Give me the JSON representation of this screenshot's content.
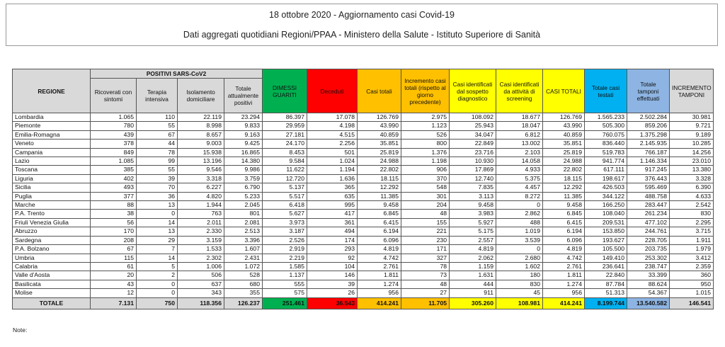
{
  "header": {
    "title": "18 ottobre 2020 - Aggiornamento casi Covid-19",
    "subtitle": "Dati aggregati quotidiani Regioni/PPAA - Ministero della Salute - Istituto Superiore di Sanità"
  },
  "table": {
    "region_header": "REGIONE",
    "group_header": "POSITIVI SARS-CoV2",
    "columns": [
      "Ricoverati con sintomi",
      "Terapia intensiva",
      "Isolamento domiciliare",
      "Totale attualmente positivi",
      "DIMESSI GUARITI",
      "Deceduti",
      "Casi totali",
      "Incremento casi totali (rispetto al giorno precedente)",
      "Casi identificati dal sospetto diagnostico",
      "Casi identificati da attività di screening",
      "CASI TOTALI",
      "Totale casi testati",
      "Totale tamponi effettuati",
      "INCREMENTO TAMPONI"
    ],
    "rows": [
      [
        "Lombardia",
        "1.065",
        "110",
        "22.119",
        "23.294",
        "86.397",
        "17.078",
        "126.769",
        "2.975",
        "108.092",
        "18.677",
        "126.769",
        "1.565.233",
        "2.502.284",
        "30.981"
      ],
      [
        "Piemonte",
        "780",
        "55",
        "8.998",
        "9.833",
        "29.959",
        "4.198",
        "43.990",
        "1.123",
        "25.943",
        "18.047",
        "43.990",
        "505.300",
        "859.206",
        "9.721"
      ],
      [
        "Emilia-Romagna",
        "439",
        "67",
        "8.657",
        "9.163",
        "27.181",
        "4.515",
        "40.859",
        "526",
        "34.047",
        "6.812",
        "40.859",
        "760.075",
        "1.375.298",
        "9.189"
      ],
      [
        "Veneto",
        "378",
        "44",
        "9.003",
        "9.425",
        "24.170",
        "2.256",
        "35.851",
        "800",
        "22.849",
        "13.002",
        "35.851",
        "836.440",
        "2.145.935",
        "10.285"
      ],
      [
        "Campania",
        "849",
        "78",
        "15.938",
        "16.865",
        "8.453",
        "501",
        "25.819",
        "1.376",
        "23.716",
        "2.103",
        "25.819",
        "519.783",
        "766.187",
        "14.256"
      ],
      [
        "Lazio",
        "1.085",
        "99",
        "13.196",
        "14.380",
        "9.584",
        "1.024",
        "24.988",
        "1.198",
        "10.930",
        "14.058",
        "24.988",
        "941.774",
        "1.146.334",
        "23.010"
      ],
      [
        "Toscana",
        "385",
        "55",
        "9.546",
        "9.986",
        "11.622",
        "1.194",
        "22.802",
        "906",
        "17.869",
        "4.933",
        "22.802",
        "617.111",
        "917.245",
        "13.380"
      ],
      [
        "Liguria",
        "402",
        "39",
        "3.318",
        "3.759",
        "12.720",
        "1.636",
        "18.115",
        "370",
        "12.740",
        "5.375",
        "18.115",
        "198.617",
        "376.443",
        "3.328"
      ],
      [
        "Sicilia",
        "493",
        "70",
        "6.227",
        "6.790",
        "5.137",
        "365",
        "12.292",
        "548",
        "7.835",
        "4.457",
        "12.292",
        "426.503",
        "595.469",
        "6.390"
      ],
      [
        "Puglia",
        "377",
        "36",
        "4.820",
        "5.233",
        "5.517",
        "635",
        "11.385",
        "301",
        "3.113",
        "8.272",
        "11.385",
        "344.122",
        "488.758",
        "4.633"
      ],
      [
        "Marche",
        "88",
        "13",
        "1.944",
        "2.045",
        "6.418",
        "995",
        "9.458",
        "204",
        "9.458",
        "0",
        "9.458",
        "166.250",
        "283.447",
        "2.542"
      ],
      [
        "P.A. Trento",
        "38",
        "0",
        "763",
        "801",
        "5.627",
        "417",
        "6.845",
        "48",
        "3.983",
        "2.862",
        "6.845",
        "108.040",
        "261.234",
        "830"
      ],
      [
        "Friuli Venezia Giulia",
        "56",
        "14",
        "2.011",
        "2.081",
        "3.973",
        "361",
        "6.415",
        "155",
        "5.927",
        "488",
        "6.415",
        "209.531",
        "477.102",
        "2.295"
      ],
      [
        "Abruzzo",
        "170",
        "13",
        "2.330",
        "2.513",
        "3.187",
        "494",
        "6.194",
        "221",
        "5.175",
        "1.019",
        "6.194",
        "153.850",
        "244.761",
        "3.715"
      ],
      [
        "Sardegna",
        "208",
        "29",
        "3.159",
        "3.396",
        "2.526",
        "174",
        "6.096",
        "230",
        "2.557",
        "3.539",
        "6.096",
        "193.627",
        "228.705",
        "1.911"
      ],
      [
        "P.A. Bolzano",
        "67",
        "7",
        "1.533",
        "1.607",
        "2.919",
        "293",
        "4.819",
        "171",
        "4.819",
        "0",
        "4.819",
        "105.500",
        "203.735",
        "1.979"
      ],
      [
        "Umbria",
        "115",
        "14",
        "2.302",
        "2.431",
        "2.219",
        "92",
        "4.742",
        "327",
        "2.062",
        "2.680",
        "4.742",
        "149.410",
        "253.302",
        "3.412"
      ],
      [
        "Calabria",
        "61",
        "5",
        "1.006",
        "1.072",
        "1.585",
        "104",
        "2.761",
        "78",
        "1.159",
        "1.602",
        "2.761",
        "236.641",
        "238.747",
        "2.359"
      ],
      [
        "Valle d'Aosta",
        "20",
        "2",
        "506",
        "528",
        "1.137",
        "146",
        "1.811",
        "73",
        "1.631",
        "180",
        "1.811",
        "22.840",
        "33.399",
        "360"
      ],
      [
        "Basilicata",
        "43",
        "0",
        "637",
        "680",
        "555",
        "39",
        "1.274",
        "48",
        "444",
        "830",
        "1.274",
        "87.784",
        "88.624",
        "950"
      ],
      [
        "Molise",
        "12",
        "0",
        "343",
        "355",
        "575",
        "26",
        "956",
        "27",
        "911",
        "45",
        "956",
        "51.313",
        "54.367",
        "1.015"
      ]
    ],
    "total": [
      "TOTALE",
      "7.131",
      "750",
      "118.356",
      "126.237",
      "251.461",
      "36.543",
      "414.241",
      "11.705",
      "305.260",
      "108.981",
      "414.241",
      "8.199.744",
      "13.540.582",
      "146.541"
    ]
  },
  "note": "Note:"
}
